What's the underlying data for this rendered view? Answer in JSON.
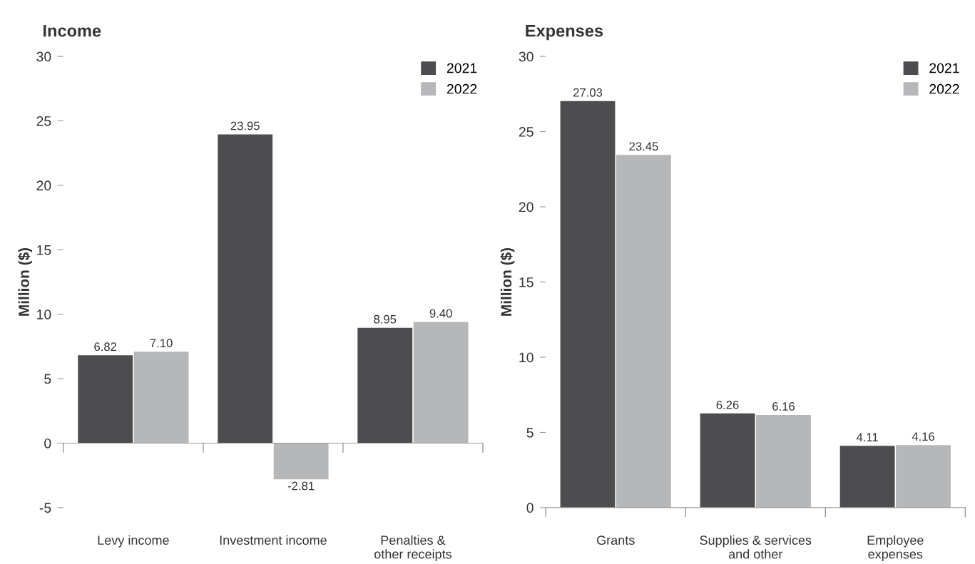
{
  "chart_data": [
    {
      "type": "bar",
      "title": "Income",
      "ylabel": "Million ($)",
      "categories": [
        "Levy income",
        "Investment income",
        "Penalties &\nother receipts"
      ],
      "series": [
        {
          "name": "2021",
          "color": "#4d4d4f",
          "values": [
            6.82,
            23.95,
            8.95
          ],
          "value_labels": [
            "6.82",
            "23.95",
            "8.95"
          ]
        },
        {
          "name": "2022",
          "color": "#b6b7b9",
          "values": [
            7.1,
            -2.81,
            9.4
          ],
          "value_labels": [
            "7.10",
            "-2.81",
            "9.40"
          ]
        }
      ],
      "ylim": [
        -5,
        30
      ],
      "yticks": [
        -5,
        0,
        5,
        10,
        15,
        20,
        25,
        30
      ],
      "legend": "top right"
    },
    {
      "type": "bar",
      "title": "Expenses",
      "ylabel": "Million ($)",
      "categories": [
        "Grants",
        "Supplies & services\nand other",
        "Employee\nexpenses"
      ],
      "series": [
        {
          "name": "2021",
          "color": "#4d4d4f",
          "values": [
            27.03,
            6.26,
            4.11
          ],
          "value_labels": [
            "27.03",
            "6.26",
            "4.11"
          ]
        },
        {
          "name": "2022",
          "color": "#b6b7b9",
          "values": [
            23.45,
            6.16,
            4.16
          ],
          "value_labels": [
            "23.45",
            "6.16",
            "4.16"
          ]
        }
      ],
      "ylim": [
        0,
        30
      ],
      "yticks": [
        0,
        5,
        10,
        15,
        20,
        25,
        30
      ],
      "legend": "top right"
    }
  ]
}
